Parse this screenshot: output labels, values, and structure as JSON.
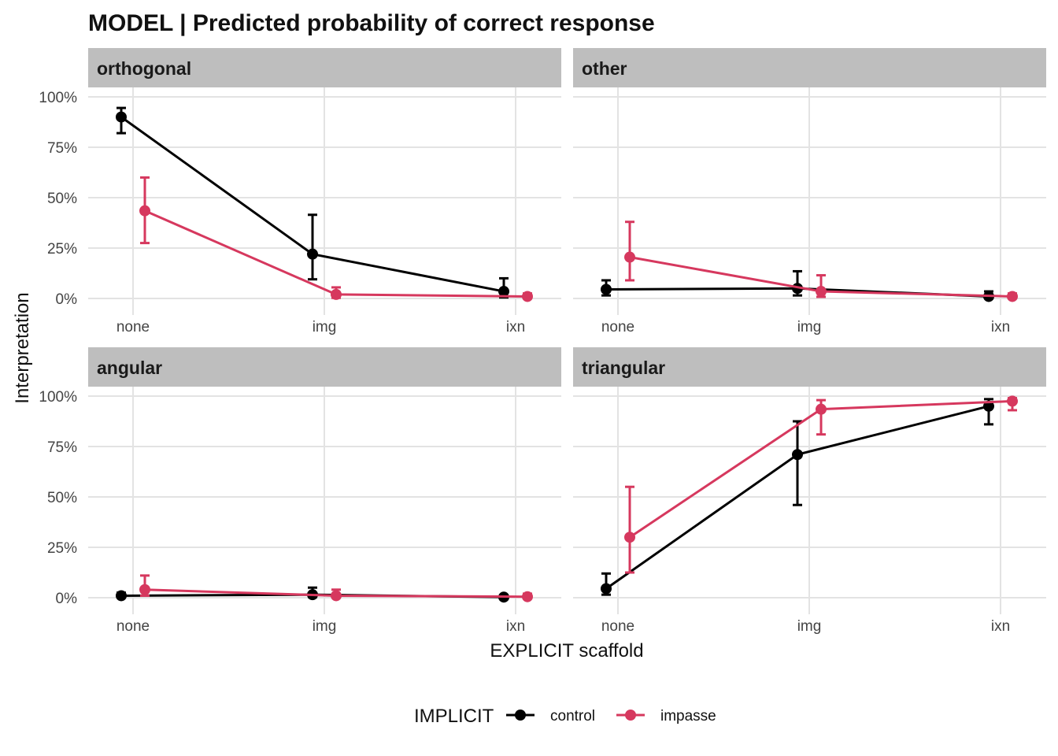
{
  "chart_data": {
    "type": "line",
    "title": "MODEL | Predicted probability of correct response",
    "xlabel": "EXPLICIT scaffold",
    "ylabel": "Interpretation",
    "categories": [
      "none",
      "img",
      "ixn"
    ],
    "y_ticks": [
      "0%",
      "25%",
      "50%",
      "75%",
      "100%"
    ],
    "ylim": [
      0,
      100
    ],
    "grid": true,
    "legend": {
      "title": "IMPLICIT",
      "position": "bottom",
      "entries": [
        "control",
        "impasse"
      ]
    },
    "colors": {
      "control": "#000000",
      "impasse": "#d6385e"
    },
    "panels": [
      {
        "name": "orthogonal",
        "series": [
          {
            "name": "control",
            "values": [
              90,
              22,
              3.5
            ],
            "lower": [
              82,
              9.5,
              0.5
            ],
            "upper": [
              94.5,
              41.5,
              10
            ]
          },
          {
            "name": "impasse",
            "values": [
              43.5,
              2,
              1
            ],
            "lower": [
              27.5,
              0.3,
              0.2
            ],
            "upper": [
              60,
              5.5,
              2.5
            ]
          }
        ]
      },
      {
        "name": "other",
        "series": [
          {
            "name": "control",
            "values": [
              4.5,
              5,
              1
            ],
            "lower": [
              1.5,
              1.5,
              0.2
            ],
            "upper": [
              9,
              13.5,
              3.5
            ]
          },
          {
            "name": "impasse",
            "values": [
              20.5,
              3.5,
              1
            ],
            "lower": [
              9,
              0.8,
              0.2
            ],
            "upper": [
              38,
              11.5,
              2.5
            ]
          }
        ]
      },
      {
        "name": "angular",
        "series": [
          {
            "name": "control",
            "values": [
              1,
              1.5,
              0.3
            ],
            "lower": [
              0.3,
              0.3,
              0.05
            ],
            "upper": [
              2.5,
              5,
              1
            ]
          },
          {
            "name": "impasse",
            "values": [
              4,
              1,
              0.5
            ],
            "lower": [
              1,
              0.2,
              0.1
            ],
            "upper": [
              11,
              4,
              2
            ]
          }
        ]
      },
      {
        "name": "triangular",
        "series": [
          {
            "name": "control",
            "values": [
              4.5,
              71,
              95
            ],
            "lower": [
              1.5,
              46,
              86
            ],
            "upper": [
              12,
              87.5,
              98.5
            ]
          },
          {
            "name": "impasse",
            "values": [
              30,
              93.5,
              97.5
            ],
            "lower": [
              12.5,
              81,
              93
            ],
            "upper": [
              55,
              98,
              99
            ]
          }
        ]
      }
    ]
  }
}
